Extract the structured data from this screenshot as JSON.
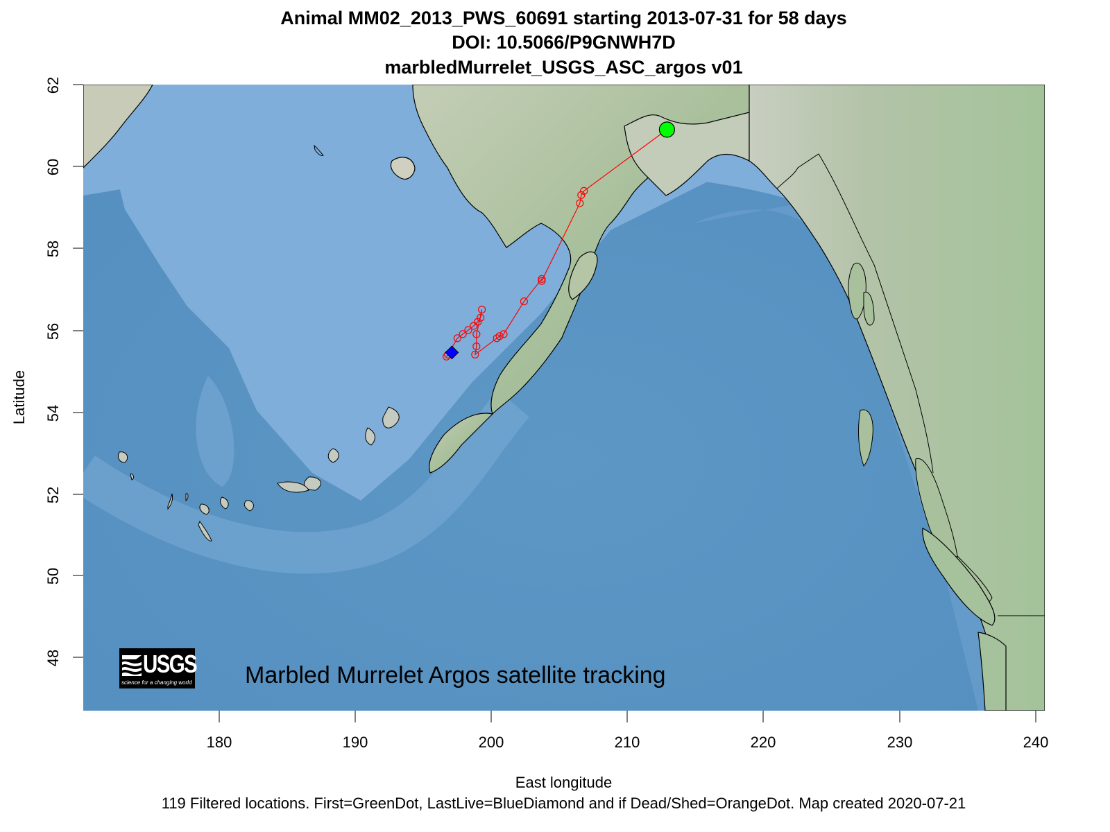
{
  "title": {
    "line1": "Animal  MM02_2013_PWS_60691 starting  2013-07-31 for 58 days",
    "line2": "DOI: 10.5066/P9GNWH7D",
    "line3": "marbledMurrelet_USGS_ASC_argos v01"
  },
  "axes": {
    "xlabel": "East longitude",
    "ylabel": "Latitude",
    "xticks": [
      "180",
      "190",
      "200",
      "210",
      "220",
      "230",
      "240"
    ],
    "yticks": [
      "62",
      "60",
      "58",
      "56",
      "54",
      "52",
      "50",
      "48"
    ]
  },
  "watermark": "Marbled Murrelet Argos satellite tracking",
  "logo": {
    "word": "USGS",
    "tagline": "science for a changing world"
  },
  "footer": "119 Filtered locations. First=GreenDot, LastLive=BlueDiamond and if Dead/Shed=OrangeDot. Map created  2020-07-21",
  "colors": {
    "track": "#ff0000",
    "first_marker": "#00ff00",
    "last_marker": "#0000ff",
    "ocean_shallow": "#7eaed9",
    "ocean_deep": "#5b95c3",
    "land": "#b9c9a8"
  },
  "chart_data": {
    "type": "scatter",
    "title": "Animal  MM02_2013_PWS_60691 starting  2013-07-31 for 58 days / DOI: 10.5066/P9GNWH7D / marbledMurrelet_USGS_ASC_argos v01",
    "xlabel": "East longitude",
    "ylabel": "Latitude",
    "xlim": [
      170,
      240.7
    ],
    "ylim": [
      46.8,
      62
    ],
    "xticks": [
      180,
      190,
      200,
      210,
      220,
      230,
      240
    ],
    "yticks": [
      48,
      50,
      52,
      54,
      56,
      58,
      60,
      62
    ],
    "grid": false,
    "legend": "none (described in footer)",
    "n_locations": 119,
    "series": [
      {
        "name": "track (filtered locations)",
        "marker": "open red circle, connected by red line",
        "points": [
          [
            212.9,
            60.9
          ],
          [
            206.8,
            59.4
          ],
          [
            206.6,
            59.3
          ],
          [
            206.5,
            59.1
          ],
          [
            203.7,
            57.2
          ],
          [
            203.7,
            57.25
          ],
          [
            202.4,
            56.7
          ],
          [
            200.9,
            55.9
          ],
          [
            200.6,
            55.85
          ],
          [
            200.4,
            55.8
          ],
          [
            198.8,
            55.4
          ],
          [
            198.9,
            55.6
          ],
          [
            198.9,
            55.9
          ],
          [
            199.3,
            56.5
          ],
          [
            199.2,
            56.3
          ],
          [
            199.0,
            56.2
          ],
          [
            198.7,
            56.1
          ],
          [
            198.3,
            56.0
          ],
          [
            197.9,
            55.9
          ],
          [
            197.5,
            55.8
          ],
          [
            196.8,
            55.4
          ],
          [
            196.7,
            55.35
          ],
          [
            197.0,
            55.45
          ]
        ]
      },
      {
        "name": "First (GreenDot)",
        "points": [
          [
            212.9,
            60.9
          ]
        ]
      },
      {
        "name": "LastLive (BlueDiamond)",
        "points": [
          [
            197.1,
            55.45
          ]
        ]
      }
    ],
    "annotations": [
      "Marbled Murrelet Argos satellite tracking",
      "USGS logo"
    ]
  }
}
